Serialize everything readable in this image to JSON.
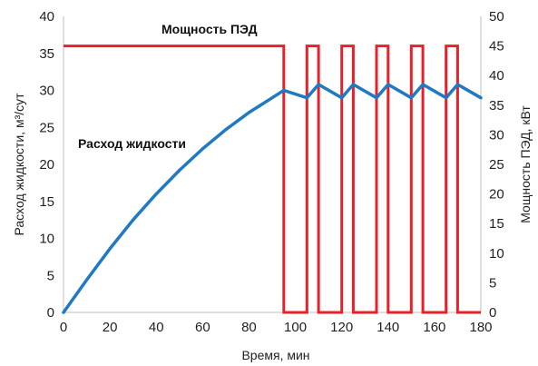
{
  "chart_data": {
    "type": "line",
    "xlabel": "Время, мин",
    "ylabel_left": "Расход жидкости, м³/сут",
    "ylabel_right": "Мощность ПЭД, кВт",
    "xlim": [
      0,
      180
    ],
    "ylim_left": [
      0,
      40
    ],
    "ylim_right": [
      0,
      50
    ],
    "x_ticks": [
      0,
      20,
      40,
      60,
      80,
      100,
      120,
      140,
      160,
      180
    ],
    "y_left_ticks": [
      0,
      5,
      10,
      15,
      20,
      25,
      30,
      35,
      40
    ],
    "y_right_ticks": [
      0,
      5,
      10,
      15,
      20,
      25,
      30,
      35,
      40,
      45,
      50
    ],
    "grid": false,
    "series": [
      {
        "name": "Расход жидкости",
        "axis": "left",
        "color": "#1f7ac3",
        "points": [
          [
            0,
            0
          ],
          [
            10,
            4.4
          ],
          [
            20,
            8.6
          ],
          [
            30,
            12.5
          ],
          [
            40,
            16.0
          ],
          [
            50,
            19.2
          ],
          [
            60,
            22.1
          ],
          [
            70,
            24.7
          ],
          [
            80,
            27.0
          ],
          [
            90,
            29.0
          ],
          [
            95,
            30.0
          ],
          [
            105,
            29.0
          ],
          [
            110,
            30.8
          ],
          [
            120,
            29.0
          ],
          [
            125,
            30.8
          ],
          [
            135,
            29.0
          ],
          [
            140,
            30.8
          ],
          [
            150,
            29.0
          ],
          [
            155,
            30.8
          ],
          [
            165,
            29.0
          ],
          [
            170,
            30.8
          ],
          [
            180,
            29.0
          ]
        ]
      },
      {
        "name": "Мощность ПЭД",
        "axis": "right",
        "color": "#e8202a",
        "points": [
          [
            0,
            45
          ],
          [
            95,
            45
          ],
          [
            95,
            0
          ],
          [
            105,
            0
          ],
          [
            105,
            45
          ],
          [
            110,
            45
          ],
          [
            110,
            0
          ],
          [
            120,
            0
          ],
          [
            120,
            45
          ],
          [
            125,
            45
          ],
          [
            125,
            0
          ],
          [
            135,
            0
          ],
          [
            135,
            45
          ],
          [
            140,
            45
          ],
          [
            140,
            0
          ],
          [
            150,
            0
          ],
          [
            150,
            45
          ],
          [
            155,
            45
          ],
          [
            155,
            0
          ],
          [
            165,
            0
          ],
          [
            165,
            45
          ],
          [
            170,
            45
          ],
          [
            170,
            0
          ],
          [
            180,
            0
          ]
        ]
      }
    ]
  }
}
